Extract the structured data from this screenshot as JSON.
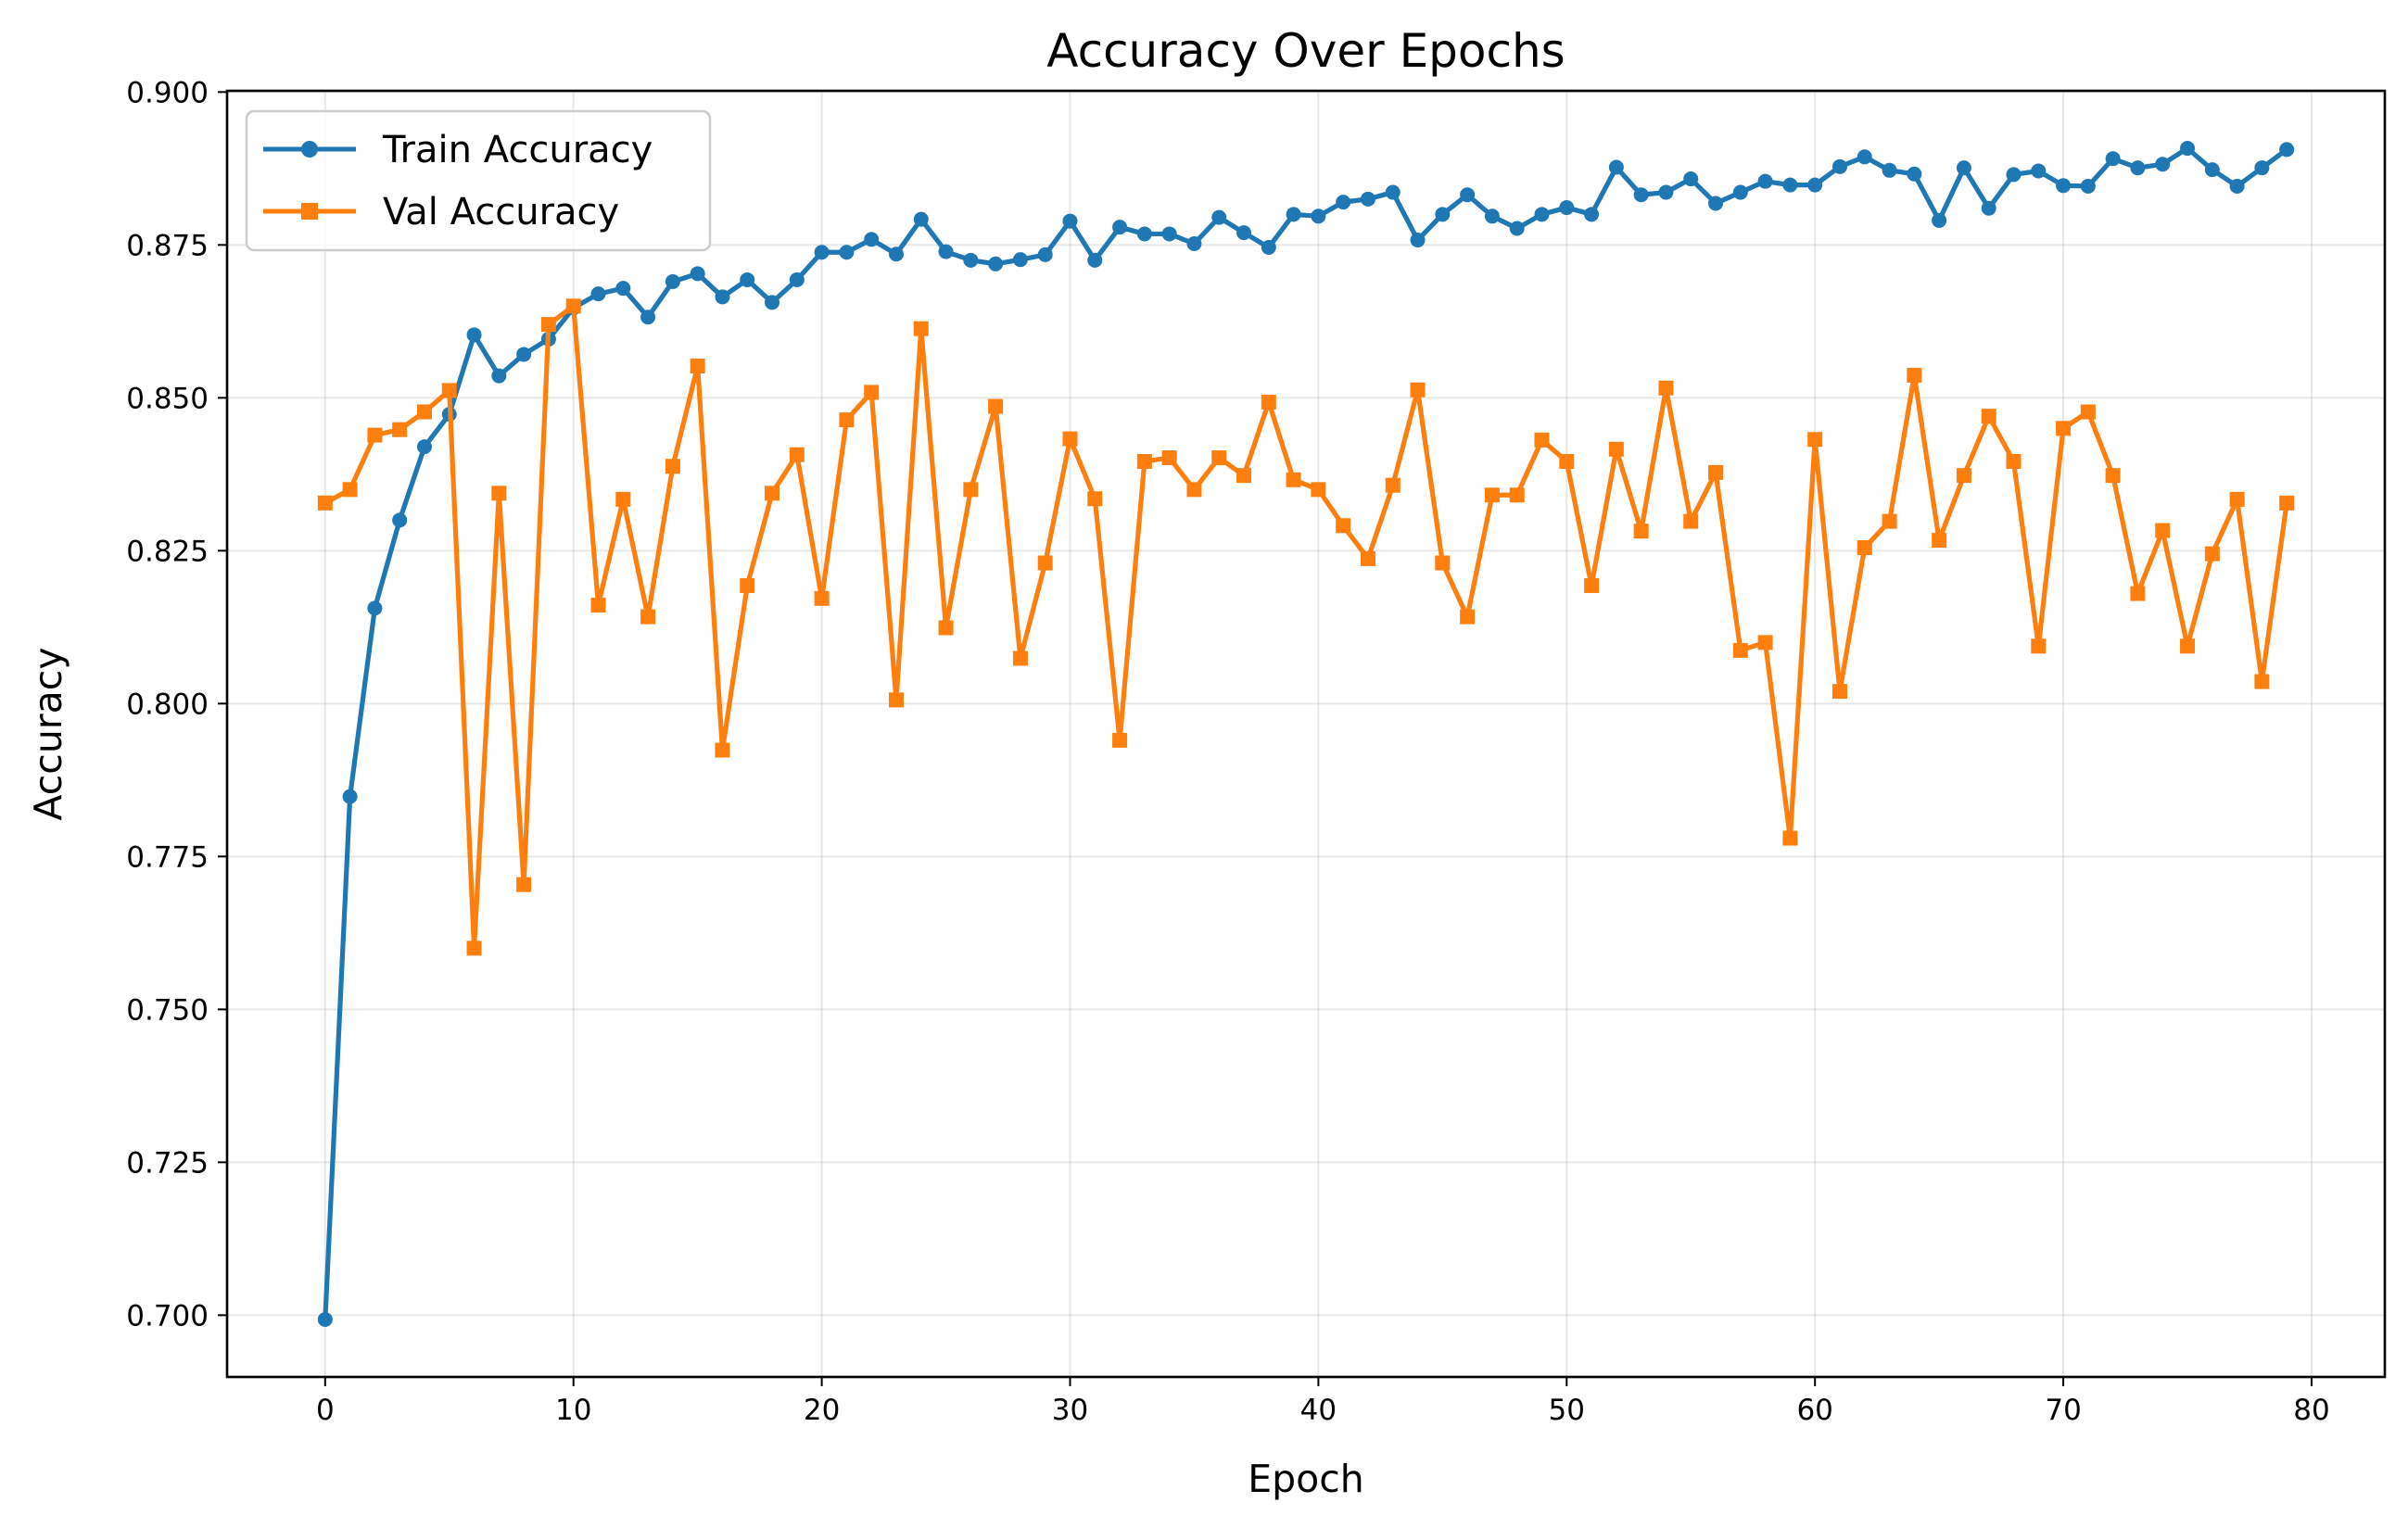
{
  "chart_data": {
    "type": "line",
    "title": "Accuracy Over Epochs",
    "xlabel": "Epoch",
    "ylabel": "Accuracy",
    "xlim": [
      -3.95,
      82.95
    ],
    "ylim": [
      0.6899,
      0.9002
    ],
    "xticks": [
      0,
      10,
      20,
      30,
      40,
      50,
      60,
      70,
      80
    ],
    "yticks": [
      0.7,
      0.725,
      0.75,
      0.775,
      0.8,
      0.825,
      0.85,
      0.875,
      0.9
    ],
    "ytick_labels": [
      "0.700",
      "0.725",
      "0.750",
      "0.775",
      "0.800",
      "0.825",
      "0.850",
      "0.875",
      "0.900"
    ],
    "grid": true,
    "legend_position": "upper-left",
    "x": [
      0,
      1,
      2,
      3,
      4,
      5,
      6,
      7,
      8,
      9,
      10,
      11,
      12,
      13,
      14,
      15,
      16,
      17,
      18,
      19,
      20,
      21,
      22,
      23,
      24,
      25,
      26,
      27,
      28,
      29,
      30,
      31,
      32,
      33,
      34,
      35,
      36,
      37,
      38,
      39,
      40,
      41,
      42,
      43,
      44,
      45,
      46,
      47,
      48,
      49,
      50,
      51,
      52,
      53,
      54,
      55,
      56,
      57,
      58,
      59,
      60,
      61,
      62,
      63,
      64,
      65,
      66,
      67,
      68,
      69,
      70,
      71,
      72,
      73,
      74,
      75,
      76,
      77,
      78,
      79
    ],
    "series": [
      {
        "name": "Train Accuracy",
        "color": "#1f77b4",
        "marker": "circle",
        "values": [
          0.6993,
          0.7848,
          0.8156,
          0.83,
          0.842,
          0.8473,
          0.8603,
          0.8536,
          0.8571,
          0.8596,
          0.8647,
          0.867,
          0.8679,
          0.8632,
          0.869,
          0.8703,
          0.8665,
          0.8693,
          0.8656,
          0.8693,
          0.8738,
          0.8738,
          0.8759,
          0.8735,
          0.8792,
          0.8739,
          0.8725,
          0.8719,
          0.8726,
          0.8734,
          0.8789,
          0.8725,
          0.8779,
          0.8768,
          0.8768,
          0.8752,
          0.8795,
          0.877,
          0.8746,
          0.88,
          0.8797,
          0.882,
          0.8825,
          0.8836,
          0.8758,
          0.88,
          0.8832,
          0.8797,
          0.8777,
          0.88,
          0.8811,
          0.88,
          0.8877,
          0.8832,
          0.8836,
          0.8858,
          0.8818,
          0.8836,
          0.8854,
          0.8848,
          0.8848,
          0.8878,
          0.8894,
          0.8872,
          0.8866,
          0.879,
          0.8876,
          0.881,
          0.8865,
          0.8871,
          0.8847,
          0.8846,
          0.8891,
          0.8876,
          0.8882,
          0.8908,
          0.8873,
          0.8846,
          0.8876,
          0.8906
        ]
      },
      {
        "name": "Val Accuracy",
        "color": "#ff7f0e",
        "marker": "square",
        "values": [
          0.8328,
          0.835,
          0.8439,
          0.8448,
          0.8477,
          0.8512,
          0.76,
          0.8344,
          0.7704,
          0.862,
          0.865,
          0.8161,
          0.8334,
          0.8142,
          0.8388,
          0.8552,
          0.7924,
          0.8193,
          0.8344,
          0.8407,
          0.8172,
          0.8464,
          0.8509,
          0.8006,
          0.8613,
          0.8124,
          0.835,
          0.8486,
          0.8074,
          0.823,
          0.8433,
          0.8335,
          0.794,
          0.8396,
          0.8402,
          0.835,
          0.8402,
          0.8373,
          0.8493,
          0.8366,
          0.835,
          0.8291,
          0.8237,
          0.8357,
          0.8513,
          0.823,
          0.8142,
          0.8341,
          0.8341,
          0.8431,
          0.8396,
          0.8193,
          0.8416,
          0.8282,
          0.8516,
          0.8298,
          0.8378,
          0.8087,
          0.81,
          0.778,
          0.8432,
          0.802,
          0.8255,
          0.8298,
          0.8537,
          0.8267,
          0.8373,
          0.847,
          0.8396,
          0.8094,
          0.845,
          0.8477,
          0.8373,
          0.818,
          0.8283,
          0.8094,
          0.8245,
          0.8334,
          0.8036,
          0.8328
        ]
      }
    ]
  }
}
